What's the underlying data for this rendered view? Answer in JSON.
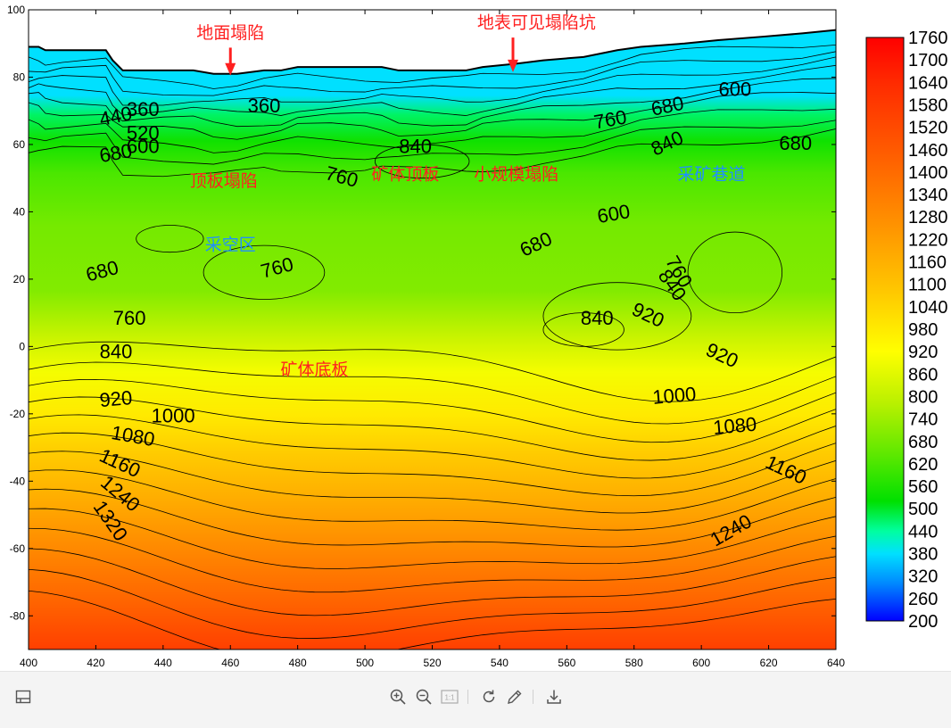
{
  "chart_data": {
    "type": "contour",
    "title": "",
    "xlabel": "",
    "ylabel": "",
    "xlim": [
      400,
      640
    ],
    "ylim": [
      -90,
      100
    ],
    "x_ticks": [
      400,
      420,
      440,
      460,
      480,
      500,
      520,
      540,
      560,
      580,
      600,
      620,
      640
    ],
    "y_ticks": [
      100,
      80,
      60,
      40,
      20,
      0,
      -20,
      -40,
      -60,
      -80
    ],
    "grid": false,
    "colorbar": {
      "min": 200,
      "max": 1760,
      "position": "right",
      "tick_labels": [
        1760,
        1700,
        1640,
        1580,
        1520,
        1460,
        1400,
        1340,
        1280,
        1220,
        1160,
        1100,
        1040,
        980,
        920,
        860,
        800,
        740,
        680,
        620,
        560,
        500,
        440,
        380,
        320,
        260,
        200
      ],
      "colors": [
        {
          "value": 200,
          "color": "#0000ff"
        },
        {
          "value": 300,
          "color": "#0088ff"
        },
        {
          "value": 380,
          "color": "#00e0ff"
        },
        {
          "value": 440,
          "color": "#00ffa0"
        },
        {
          "value": 520,
          "color": "#00e000"
        },
        {
          "value": 640,
          "color": "#5ae800"
        },
        {
          "value": 780,
          "color": "#b8f000"
        },
        {
          "value": 920,
          "color": "#ffff00"
        },
        {
          "value": 1080,
          "color": "#ffc800"
        },
        {
          "value": 1260,
          "color": "#ff9200"
        },
        {
          "value": 1460,
          "color": "#ff5a00"
        },
        {
          "value": 1640,
          "color": "#ff2a00"
        },
        {
          "value": 1760,
          "color": "#ff0000"
        }
      ]
    },
    "surface_profile": [
      [
        400,
        89
      ],
      [
        403,
        89
      ],
      [
        405,
        88
      ],
      [
        410,
        88
      ],
      [
        423,
        88
      ],
      [
        425,
        85
      ],
      [
        428,
        82
      ],
      [
        440,
        82
      ],
      [
        449,
        82
      ],
      [
        455,
        81
      ],
      [
        462,
        81
      ],
      [
        470,
        82
      ],
      [
        475,
        82
      ],
      [
        480,
        83
      ],
      [
        490,
        83
      ],
      [
        500,
        83
      ],
      [
        505,
        83
      ],
      [
        510,
        82
      ],
      [
        520,
        82
      ],
      [
        530,
        82
      ],
      [
        535,
        83
      ],
      [
        545,
        84
      ],
      [
        553,
        85
      ],
      [
        565,
        86
      ],
      [
        575,
        88
      ],
      [
        582,
        89
      ],
      [
        595,
        90
      ],
      [
        605,
        91
      ],
      [
        618,
        92
      ],
      [
        630,
        93
      ],
      [
        640,
        94
      ]
    ],
    "contour_labels": [
      {
        "text": "360",
        "x": 434,
        "y": 70,
        "angle": 0
      },
      {
        "text": "360",
        "x": 470,
        "y": 71,
        "angle": 0
      },
      {
        "text": "440",
        "x": 426,
        "y": 68,
        "angle": -12
      },
      {
        "text": "520",
        "x": 434,
        "y": 63,
        "angle": 0
      },
      {
        "text": "600",
        "x": 434,
        "y": 59,
        "angle": 0
      },
      {
        "text": "680",
        "x": 426,
        "y": 57,
        "angle": -10
      },
      {
        "text": "840",
        "x": 515,
        "y": 59,
        "angle": 0
      },
      {
        "text": "760",
        "x": 493,
        "y": 50,
        "angle": 15
      },
      {
        "text": "760",
        "x": 573,
        "y": 67,
        "angle": -10
      },
      {
        "text": "680",
        "x": 590,
        "y": 71,
        "angle": -12
      },
      {
        "text": "600",
        "x": 610,
        "y": 76,
        "angle": 0
      },
      {
        "text": "840",
        "x": 590,
        "y": 60,
        "angle": -25
      },
      {
        "text": "680",
        "x": 628,
        "y": 60,
        "angle": 0
      },
      {
        "text": "600",
        "x": 574,
        "y": 39,
        "angle": -10
      },
      {
        "text": "680",
        "x": 551,
        "y": 30,
        "angle": -25
      },
      {
        "text": "760",
        "x": 474,
        "y": 23,
        "angle": -15
      },
      {
        "text": "680",
        "x": 422,
        "y": 22,
        "angle": -15
      },
      {
        "text": "760",
        "x": 593,
        "y": 22,
        "angle": 60
      },
      {
        "text": "840",
        "x": 591,
        "y": 18,
        "angle": 55
      },
      {
        "text": "760",
        "x": 430,
        "y": 8,
        "angle": 0
      },
      {
        "text": "840",
        "x": 569,
        "y": 8,
        "angle": 0
      },
      {
        "text": "920",
        "x": 584,
        "y": 9,
        "angle": 25
      },
      {
        "text": "840",
        "x": 426,
        "y": -2,
        "angle": 0
      },
      {
        "text": "920",
        "x": 606,
        "y": -3,
        "angle": 25
      },
      {
        "text": "920",
        "x": 426,
        "y": -16,
        "angle": -5
      },
      {
        "text": "1000",
        "x": 443,
        "y": -21,
        "angle": 0
      },
      {
        "text": "1000",
        "x": 592,
        "y": -15,
        "angle": -5
      },
      {
        "text": "1080",
        "x": 431,
        "y": -27,
        "angle": 10
      },
      {
        "text": "1080",
        "x": 610,
        "y": -24,
        "angle": -5
      },
      {
        "text": "1160",
        "x": 427,
        "y": -35,
        "angle": 25
      },
      {
        "text": "1160",
        "x": 625,
        "y": -37,
        "angle": 25
      },
      {
        "text": "1240",
        "x": 427,
        "y": -44,
        "angle": 40
      },
      {
        "text": "1240",
        "x": 609,
        "y": -55,
        "angle": -30
      },
      {
        "text": "1320",
        "x": 424,
        "y": -52,
        "angle": 55
      }
    ],
    "annotations": [
      {
        "text": "地面塌陷",
        "x": 460,
        "y": 93,
        "color": "#ff2020",
        "arrow_to": [
          460,
          81
        ]
      },
      {
        "text": "地表可见塌陷坑",
        "x": 551,
        "y": 96,
        "color": "#ff2020",
        "arrow_to": [
          544,
          82
        ]
      },
      {
        "text": "顶板塌陷",
        "x": 458,
        "y": 49,
        "color": "#ff2020"
      },
      {
        "text": "矿体顶板",
        "x": 512,
        "y": 51,
        "color": "#ff2020"
      },
      {
        "text": "小规模塌陷",
        "x": 545,
        "y": 51,
        "color": "#ff2020"
      },
      {
        "text": "采矿巷道",
        "x": 603,
        "y": 51,
        "color": "#2090ff"
      },
      {
        "text": "采空区",
        "x": 460,
        "y": 30,
        "color": "#2090ff"
      },
      {
        "text": "矿体底板",
        "x": 485,
        "y": -7,
        "color": "#ff2020"
      }
    ]
  },
  "toolbar": {
    "left_icon": "window-layout-icon",
    "icons": [
      "zoom-in-icon",
      "zoom-out-icon",
      "actual-size-icon",
      "rotate-icon",
      "edit-icon",
      "download-icon"
    ],
    "actual_size_label": "1:1"
  }
}
